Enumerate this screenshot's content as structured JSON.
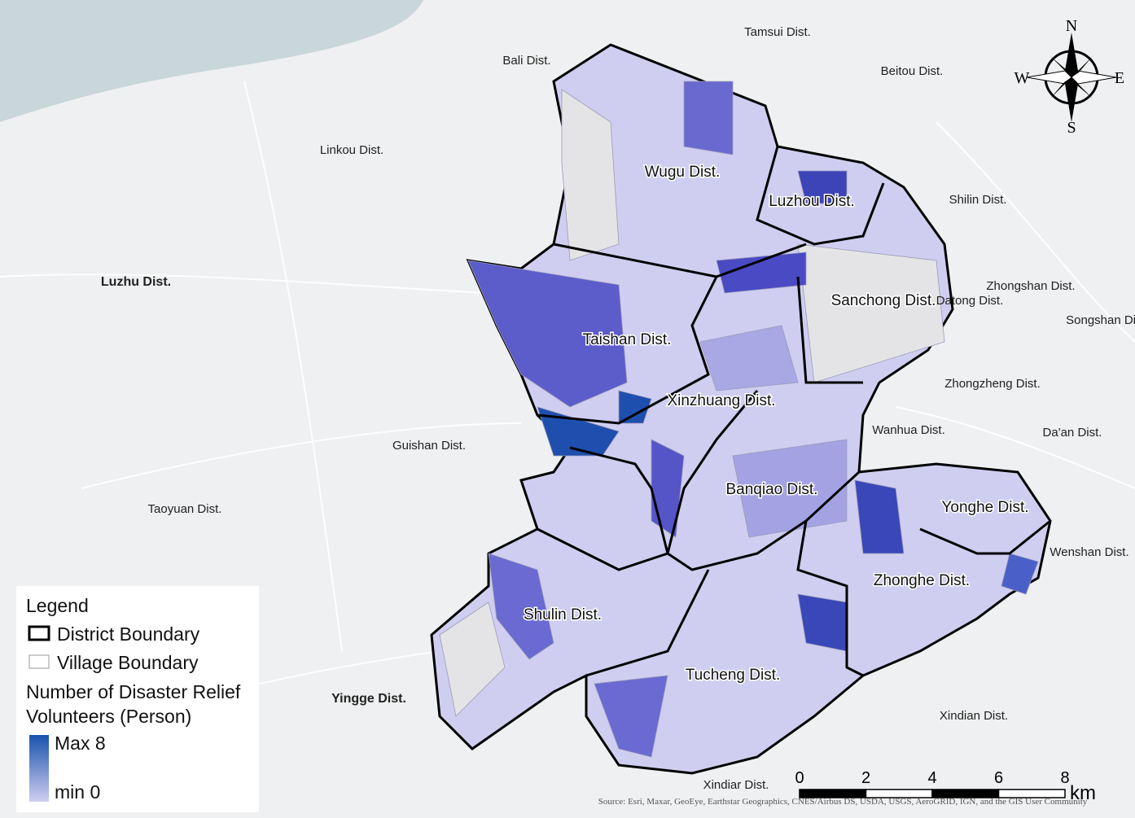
{
  "map": {
    "surrounding_districts": [
      "Tamsui Dist.",
      "Bali Dist.",
      "Beitou Dist.",
      "Linkou Dist.",
      "Shilin Dist.",
      "Luzhu Dist.",
      "Datong Dist.",
      "Zhongshan Dist.",
      "Songshan Dist.",
      "Zhongzheng Dist.",
      "Wanhua Dist.",
      "Da'an Dist.",
      "Guishan Dist.",
      "Taoyuan Dist.",
      "Wenshan Dist.",
      "Yingge Dist.",
      "Xindian Dist.",
      "Xindiar Dist."
    ],
    "study_districts": [
      "Wugu Dist.",
      "Luzhou Dist.",
      "Sanchong Dist.",
      "Taishan Dist.",
      "Xinzhuang Dist.",
      "Banqiao Dist.",
      "Yonghe Dist.",
      "Zhonghe Dist.",
      "Shulin Dist.",
      "Tucheng Dist."
    ]
  },
  "compass": {
    "n": "N",
    "e": "E",
    "s": "S",
    "w": "W"
  },
  "legend": {
    "title": "Legend",
    "district_boundary": "District Boundary",
    "village_boundary": "Village Boundary",
    "variable_lines": [
      "Number of Disaster Relief",
      "Volunteers (Person)"
    ],
    "max_label": "Max 8",
    "min_label": "min 0"
  },
  "scale_bar": {
    "ticks": [
      0,
      2,
      4,
      6,
      8
    ],
    "unit": "km"
  },
  "source": "Source: Esri, Maxar, GeoEye, Earthstar Geographics, CNES/Airbus DS, USDA, USGS, AeroGRID, IGN, and the GIS User Community"
}
